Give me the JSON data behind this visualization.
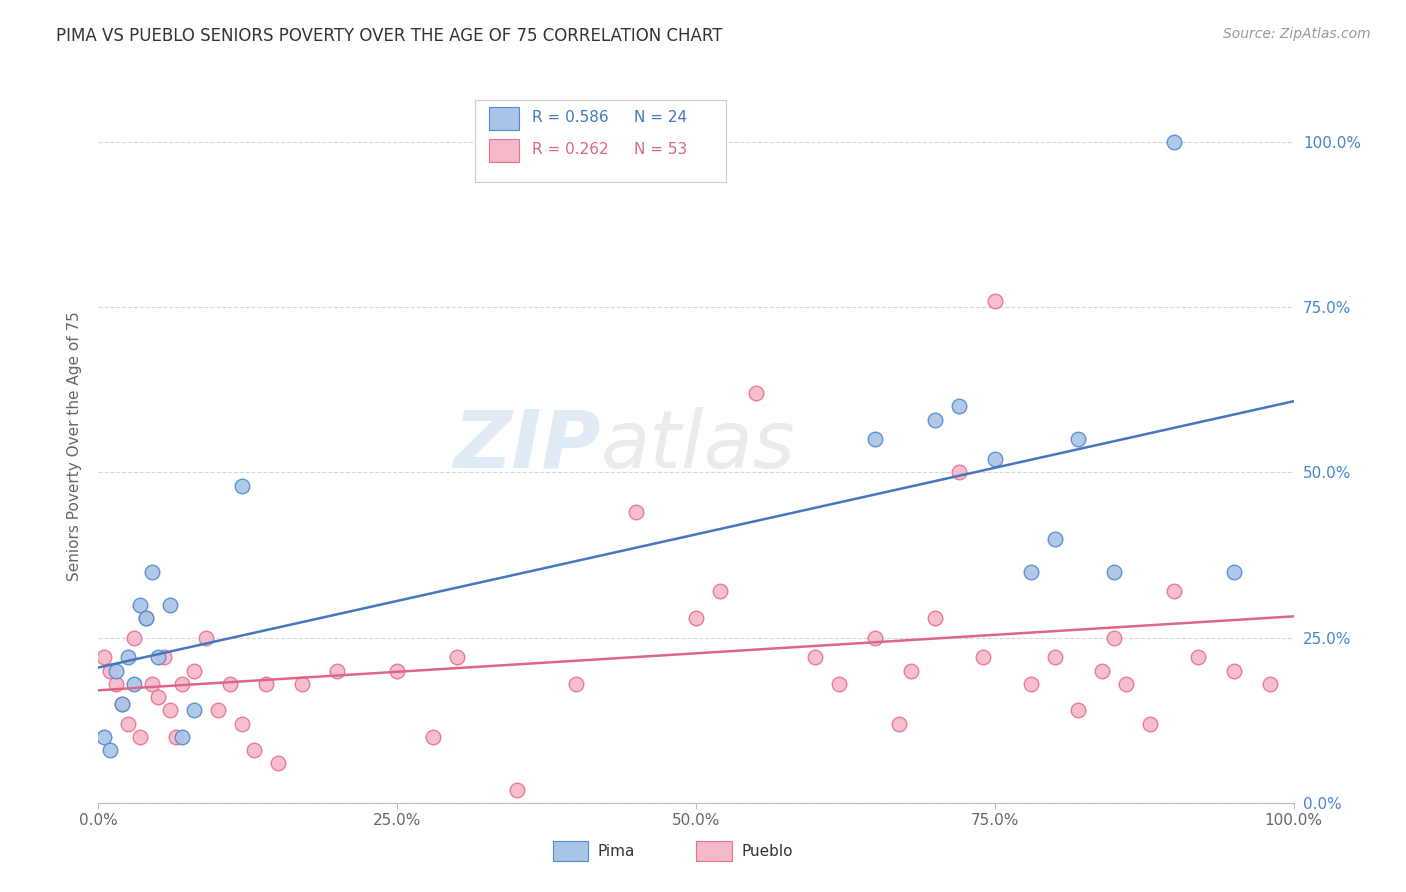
{
  "title": "PIMA VS PUEBLO SENIORS POVERTY OVER THE AGE OF 75 CORRELATION CHART",
  "source": "Source: ZipAtlas.com",
  "ylabel": "Seniors Poverty Over the Age of 75",
  "watermark": "ZIPatlas",
  "legend_pima": "Pima",
  "legend_pueblo": "Pueblo",
  "R_pima": 0.586,
  "N_pima": 24,
  "R_pueblo": 0.262,
  "N_pueblo": 53,
  "pima_color": "#a8c4e8",
  "pueblo_color": "#f5b8c8",
  "pima_edge_color": "#5588cc",
  "pueblo_edge_color": "#e87090",
  "pima_line_color": "#4477bb",
  "pueblo_line_color": "#dd6688",
  "ytick_color": "#4488cc",
  "background_color": "#ffffff",
  "grid_color": "#cccccc",
  "title_color": "#333333",
  "source_color": "#999999",
  "pima_x": [
    0.5,
    1.0,
    1.5,
    2.0,
    2.5,
    3.0,
    3.5,
    4.0,
    4.5,
    5.0,
    6.0,
    7.0,
    8.0,
    12.0,
    65.0,
    70.0,
    72.0,
    75.0,
    78.0,
    80.0,
    82.0,
    85.0,
    90.0,
    95.0
  ],
  "pima_y": [
    10.0,
    8.0,
    20.0,
    15.0,
    22.0,
    18.0,
    30.0,
    28.0,
    35.0,
    22.0,
    30.0,
    10.0,
    14.0,
    48.0,
    55.0,
    58.0,
    60.0,
    52.0,
    35.0,
    40.0,
    55.0,
    35.0,
    100.0,
    35.0
  ],
  "pueblo_x": [
    0.5,
    1.0,
    1.5,
    2.0,
    2.5,
    3.0,
    3.5,
    4.0,
    4.5,
    5.0,
    5.5,
    6.0,
    6.5,
    7.0,
    8.0,
    9.0,
    10.0,
    11.0,
    12.0,
    13.0,
    14.0,
    15.0,
    17.0,
    20.0,
    25.0,
    28.0,
    30.0,
    35.0,
    40.0,
    45.0,
    50.0,
    52.0,
    55.0,
    60.0,
    62.0,
    65.0,
    67.0,
    68.0,
    70.0,
    72.0,
    74.0,
    75.0,
    78.0,
    80.0,
    82.0,
    84.0,
    85.0,
    86.0,
    88.0,
    90.0,
    92.0,
    95.0,
    98.0
  ],
  "pueblo_y": [
    22.0,
    20.0,
    18.0,
    15.0,
    12.0,
    25.0,
    10.0,
    28.0,
    18.0,
    16.0,
    22.0,
    14.0,
    10.0,
    18.0,
    20.0,
    25.0,
    14.0,
    18.0,
    12.0,
    8.0,
    18.0,
    6.0,
    18.0,
    20.0,
    20.0,
    10.0,
    22.0,
    2.0,
    18.0,
    44.0,
    28.0,
    32.0,
    62.0,
    22.0,
    18.0,
    25.0,
    12.0,
    20.0,
    28.0,
    50.0,
    22.0,
    76.0,
    18.0,
    22.0,
    14.0,
    20.0,
    25.0,
    18.0,
    12.0,
    32.0,
    22.0,
    20.0,
    18.0
  ]
}
